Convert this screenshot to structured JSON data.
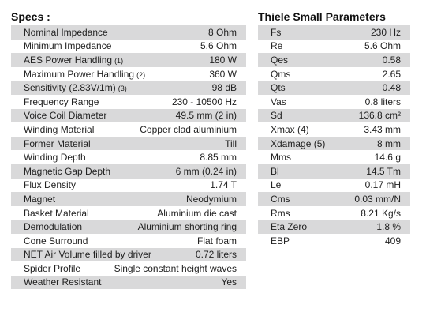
{
  "specs": {
    "title": "Specs :",
    "rows": [
      {
        "label": "Nominal Impedance",
        "value": "8 Ohm"
      },
      {
        "label": "Minimum Impedance",
        "value": "5.6 Ohm"
      },
      {
        "label": "AES Power Handling",
        "note": "(1)",
        "value": "180 W"
      },
      {
        "label": "Maximum Power Handling",
        "note": "(2)",
        "value": "360 W"
      },
      {
        "label": "Sensitivity (2.83V/1m)",
        "note": "(3)",
        "value": "98 dB"
      },
      {
        "label": "Frequency Range",
        "value": "230 - 10500 Hz"
      },
      {
        "label": "Voice Coil Diameter",
        "value": "49.5 mm (2 in)"
      },
      {
        "label": "Winding Material",
        "value": "Copper clad aluminium"
      },
      {
        "label": "Former Material",
        "value": "Till"
      },
      {
        "label": "Winding Depth",
        "value": "8.85 mm"
      },
      {
        "label": "Magnetic Gap Depth",
        "value": "6 mm (0.24 in)"
      },
      {
        "label": "Flux Density",
        "value": "1.74 T"
      },
      {
        "label": "Magnet",
        "value": "Neodymium"
      },
      {
        "label": "Basket Material",
        "value": "Aluminium die cast"
      },
      {
        "label": "Demodulation",
        "value": "Aluminium shorting ring"
      },
      {
        "label": "Cone Surround",
        "value": "Flat foam"
      },
      {
        "label": "NET Air Volume filled by driver",
        "value": "0.72 liters"
      },
      {
        "label": "Spider Profile",
        "value": "Single constant height waves"
      },
      {
        "label": "Weather Resistant",
        "value": "Yes"
      }
    ]
  },
  "thiele_small": {
    "title": "Thiele Small Parameters",
    "rows": [
      {
        "label": "Fs",
        "value": "230 Hz"
      },
      {
        "label": "Re",
        "value": "5.6 Ohm"
      },
      {
        "label": "Qes",
        "value": "0.58"
      },
      {
        "label": "Qms",
        "value": "2.65"
      },
      {
        "label": "Qts",
        "value": "0.48"
      },
      {
        "label": "Vas",
        "value": "0.8 liters"
      },
      {
        "label": "Sd",
        "value": "136.8 cm²"
      },
      {
        "label": "Xmax (4)",
        "value": "3.43 mm"
      },
      {
        "label": "Xdamage (5)",
        "value": "8 mm"
      },
      {
        "label": "Mms",
        "value": "14.6 g"
      },
      {
        "label": "Bl",
        "value": "14.5 Tm"
      },
      {
        "label": "Le",
        "value": "0.17 mH"
      },
      {
        "label": "Cms",
        "value": "0.03 mm/N"
      },
      {
        "label": "Rms",
        "value": "8.21 Kg/s"
      },
      {
        "label": "Eta Zero",
        "value": "1.8 %"
      },
      {
        "label": "EBP",
        "value": "409"
      }
    ]
  }
}
